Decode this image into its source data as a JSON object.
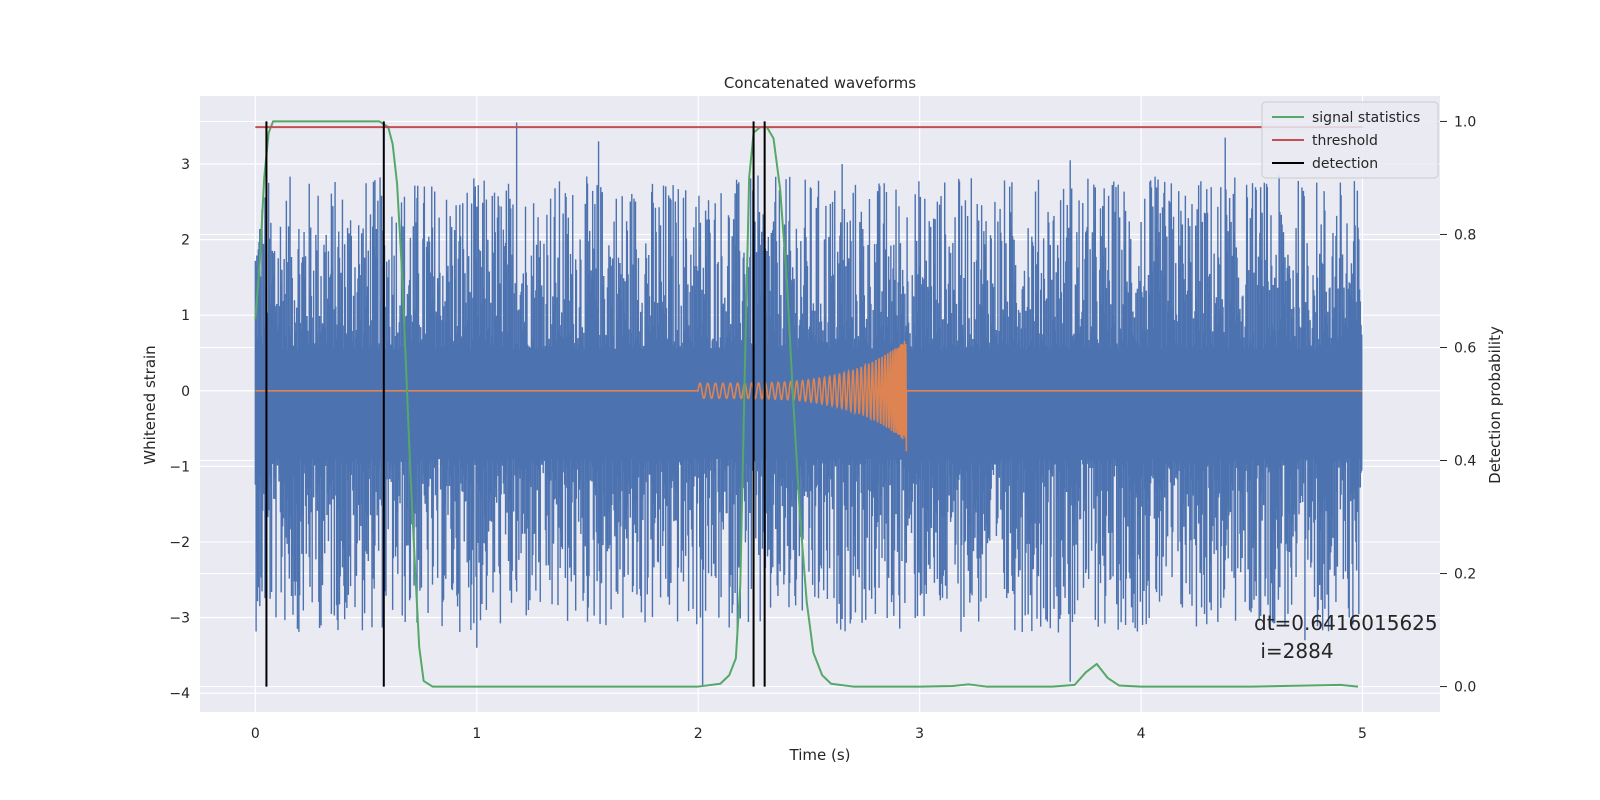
{
  "chart_data": {
    "type": "line",
    "title": "Concatenated waveforms",
    "xlabel": "Time (s)",
    "ylabel": "Whitened strain",
    "y2label": "Detection probability",
    "xlim": [
      -0.25,
      5.35
    ],
    "ylim": [
      -4.25,
      3.9
    ],
    "y2lim": [
      -0.045,
      1.045
    ],
    "x_ticks": [
      0,
      1,
      2,
      3,
      4,
      5
    ],
    "x_tick_labels": [
      "0",
      "1",
      "2",
      "3",
      "4",
      "5"
    ],
    "y_ticks": [
      3,
      2,
      1,
      0,
      -1,
      -2,
      -3,
      -4
    ],
    "y_tick_labels": [
      "3",
      "2",
      "1",
      "0",
      "−1",
      "−2",
      "−3",
      "−4"
    ],
    "y2_ticks": [
      1.0,
      0.8,
      0.6,
      0.4,
      0.2,
      0.0
    ],
    "y2_tick_labels": [
      "1.0",
      "0.8",
      "0.6",
      "0.4",
      "0.2",
      "0.0"
    ],
    "grid": true,
    "legend_position": "top-right",
    "annotation": {
      "line1": "dt=0.6416015625",
      "line2": " i=2884",
      "x": 4.5,
      "y": -3.3
    },
    "series": [
      {
        "name": "",
        "axis": "left",
        "color": "#4c72b0",
        "kind": "noise",
        "x_range": [
          0,
          5
        ],
        "band_low": -0.9,
        "band_high": 0.55,
        "peak_maxima": [
          [
            0.05,
            1.8
          ],
          [
            0.22,
            2.1
          ],
          [
            0.6,
            1.5
          ],
          [
            1.18,
            3.55
          ],
          [
            1.55,
            3.3
          ],
          [
            2.25,
            2.0
          ],
          [
            2.65,
            3.0
          ],
          [
            3.68,
            3.05
          ],
          [
            4.38,
            3.35
          ],
          [
            4.88,
            2.05
          ]
        ],
        "peak_minima": [
          [
            0.02,
            -2.85
          ],
          [
            0.19,
            -3.15
          ],
          [
            1.0,
            -3.4
          ],
          [
            2.02,
            -3.9
          ],
          [
            2.28,
            -3.05
          ],
          [
            3.68,
            -3.85
          ],
          [
            4.74,
            -3.3
          ],
          [
            4.8,
            -2.9
          ],
          [
            4.97,
            -2.0
          ]
        ]
      },
      {
        "name": "",
        "axis": "left",
        "color": "#dd8452",
        "kind": "chirp",
        "x_range": [
          0,
          5
        ],
        "chirp_start": 2.0,
        "chirp_end": 2.94,
        "amplitude_start": 0.1,
        "amplitude_end": 0.68,
        "amplitude_min_end": -0.8
      },
      {
        "name": "signal statistics",
        "axis": "right",
        "color": "#55a868",
        "x": [
          0,
          0.02,
          0.04,
          0.06,
          0.08,
          0.12,
          0.2,
          0.4,
          0.56,
          0.6,
          0.62,
          0.64,
          0.66,
          0.68,
          0.7,
          0.72,
          0.74,
          0.76,
          0.8,
          1.0,
          1.5,
          1.9,
          2.0,
          2.1,
          2.14,
          2.17,
          2.19,
          2.21,
          2.23,
          2.25,
          2.28,
          2.31,
          2.34,
          2.37,
          2.4,
          2.43,
          2.46,
          2.49,
          2.52,
          2.56,
          2.6,
          2.7,
          3.0,
          3.15,
          3.22,
          3.3,
          3.6,
          3.7,
          3.75,
          3.8,
          3.85,
          3.9,
          4.0,
          4.5,
          4.9,
          4.98
        ],
        "y": [
          0.65,
          0.75,
          0.9,
          0.98,
          1.0,
          1.0,
          1.0,
          1.0,
          1.0,
          0.99,
          0.96,
          0.89,
          0.75,
          0.57,
          0.38,
          0.22,
          0.07,
          0.01,
          0.0,
          0.0,
          0.0,
          0.0,
          0.0,
          0.005,
          0.02,
          0.05,
          0.18,
          0.55,
          0.9,
          0.98,
          0.99,
          0.99,
          0.97,
          0.88,
          0.72,
          0.5,
          0.3,
          0.15,
          0.06,
          0.02,
          0.005,
          0.0,
          0.0,
          0.001,
          0.004,
          0.0,
          0.0,
          0.003,
          0.025,
          0.04,
          0.015,
          0.002,
          0.0,
          0.0,
          0.003,
          0.0
        ]
      },
      {
        "name": "threshold",
        "axis": "right",
        "color": "#c44e52",
        "x": [
          0,
          5
        ],
        "y": [
          0.99,
          0.99
        ]
      }
    ],
    "detections": {
      "name": "detection",
      "color": "#000000",
      "x": [
        0.05,
        0.58,
        2.25,
        2.3
      ],
      "y_range": [
        0.0,
        1.0
      ]
    }
  }
}
